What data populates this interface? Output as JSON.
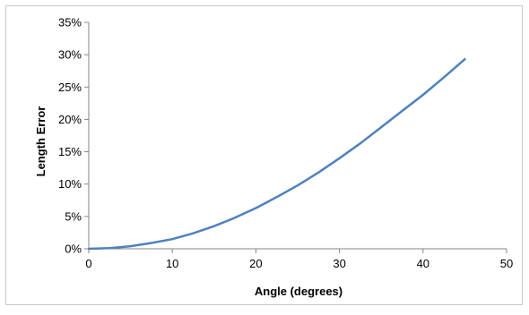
{
  "chart_data": {
    "type": "line",
    "title": "",
    "xlabel": "Angle (degrees)",
    "ylabel": "Length Error",
    "xlim": [
      0,
      50
    ],
    "ylim": [
      0,
      0.35
    ],
    "x_ticks": [
      0,
      10,
      20,
      30,
      40,
      50
    ],
    "x_tick_labels": [
      "0",
      "10",
      "20",
      "30",
      "40",
      "50"
    ],
    "y_ticks": [
      0,
      0.05,
      0.1,
      0.15,
      0.2,
      0.25,
      0.3,
      0.35
    ],
    "y_tick_labels": [
      "0%",
      "5%",
      "10%",
      "15%",
      "20%",
      "25%",
      "30%",
      "35%"
    ],
    "grid": false,
    "legend": "none",
    "series": [
      {
        "color": "#4F81BD",
        "x": [
          0,
          2.5,
          5,
          7.5,
          10,
          12.5,
          15,
          17.5,
          20,
          22.5,
          25,
          27.5,
          30,
          32.5,
          35,
          37.5,
          40,
          42.5,
          45
        ],
        "y": [
          0.0,
          0.001,
          0.004,
          0.009,
          0.015,
          0.024,
          0.035,
          0.048,
          0.063,
          0.08,
          0.098,
          0.118,
          0.14,
          0.163,
          0.188,
          0.213,
          0.238,
          0.265,
          0.293
        ]
      }
    ]
  }
}
